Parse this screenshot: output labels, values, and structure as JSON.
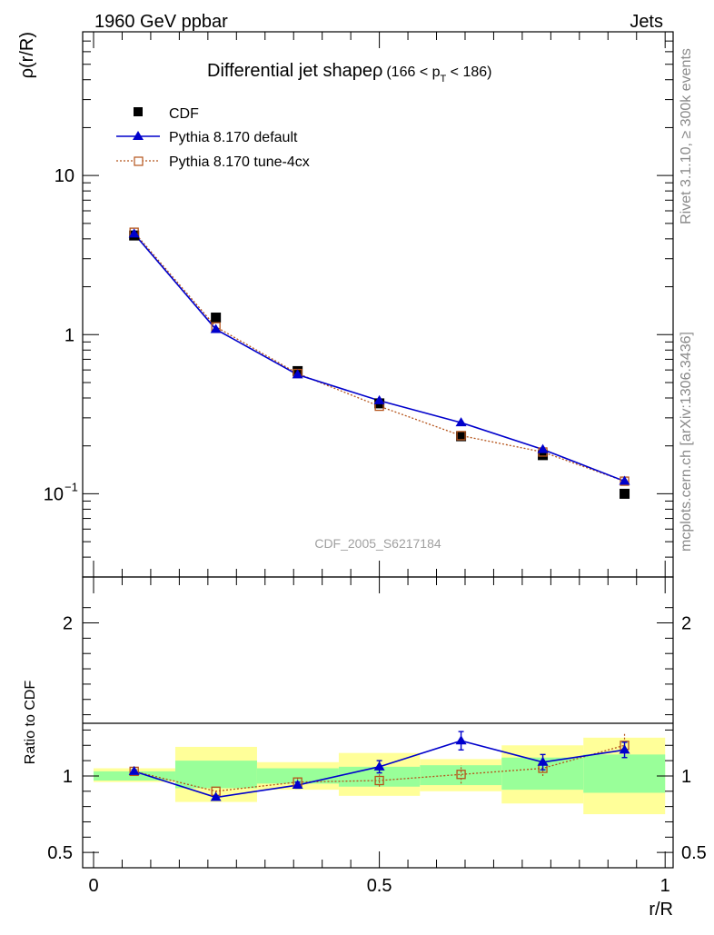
{
  "header": {
    "left": "1960 GeV ppbar",
    "right": "Jets"
  },
  "side": {
    "rivet": "Rivet 3.1.10, ≥ 300k events",
    "mcplots": "mcplots.cern.ch [arXiv:1306.3436]"
  },
  "plot": {
    "title_main": "Differential jet shapeρ",
    "title_range": "(166 < p",
    "title_sub": "T",
    "title_end": " < 186)",
    "analysis": "CDF_2005_S6217184"
  },
  "legend": {
    "cdf": "CDF",
    "default": "Pythia 8.170 default",
    "tune": "Pythia 8.170 tune-4cx"
  },
  "colors": {
    "data": "#000000",
    "default": "#0000cc",
    "tune": "#b5541b",
    "band_inner": "#99ff99",
    "band_outer": "#ffff99"
  },
  "chart_data": {
    "type": "line",
    "xlabel": "r/R",
    "ylabel": "ρ(r/R)",
    "ratio_ylabel": "Ratio to CDF",
    "xlim": [
      0,
      1
    ],
    "ylim": [
      0.03,
      80
    ],
    "yscale": "log",
    "ratio_ylim": [
      0.4,
      2.3
    ],
    "x_ticks": [
      0,
      0.5,
      1
    ],
    "x_tick_labels": [
      "0",
      "0.5",
      "1"
    ],
    "y_ticks": [
      0.1,
      1,
      10
    ],
    "ratio_ticks": [
      0.5,
      1,
      2
    ],
    "ratio_tick_labels": [
      "0.5",
      "1",
      "2"
    ],
    "bins": [
      [
        0,
        0.143
      ],
      [
        0.143,
        0.286
      ],
      [
        0.286,
        0.429
      ],
      [
        0.429,
        0.571
      ],
      [
        0.571,
        0.714
      ],
      [
        0.714,
        0.857
      ],
      [
        0.857,
        1.0
      ]
    ],
    "x": [
      0.071,
      0.214,
      0.357,
      0.5,
      0.643,
      0.786,
      0.929
    ],
    "series": [
      {
        "name": "CDF",
        "values": [
          4.2,
          1.28,
          0.59,
          0.37,
          0.23,
          0.175,
          0.1
        ]
      },
      {
        "name": "Pythia 8.170 default",
        "values": [
          4.3,
          1.08,
          0.56,
          0.385,
          0.28,
          0.19,
          0.12
        ]
      },
      {
        "name": "Pythia 8.170 tune-4cx",
        "values": [
          4.4,
          1.12,
          0.57,
          0.355,
          0.232,
          0.183,
          0.12
        ]
      }
    ],
    "ratio_series": [
      {
        "name": "Pythia 8.170 default",
        "values": [
          1.03,
          0.86,
          0.94,
          1.06,
          1.23,
          1.09,
          1.17
        ],
        "errors": [
          0.01,
          0.01,
          0.02,
          0.04,
          0.06,
          0.05,
          0.05
        ]
      },
      {
        "name": "Pythia 8.170 tune-4cx",
        "values": [
          1.03,
          0.9,
          0.96,
          0.97,
          1.01,
          1.05,
          1.2
        ],
        "errors": [
          0.01,
          0.01,
          0.03,
          0.04,
          0.06,
          0.05,
          0.08
        ]
      }
    ],
    "band_inner": [
      [
        0.97,
        1.03
      ],
      [
        0.92,
        1.1
      ],
      [
        0.95,
        1.05
      ],
      [
        0.93,
        1.06
      ],
      [
        0.94,
        1.07
      ],
      [
        0.91,
        1.12
      ],
      [
        0.89,
        1.14
      ]
    ],
    "band_outer": [
      [
        0.96,
        1.05
      ],
      [
        0.83,
        1.19
      ],
      [
        0.91,
        1.09
      ],
      [
        0.87,
        1.15
      ],
      [
        0.9,
        1.11
      ],
      [
        0.82,
        1.2
      ],
      [
        0.75,
        1.25
      ]
    ]
  }
}
